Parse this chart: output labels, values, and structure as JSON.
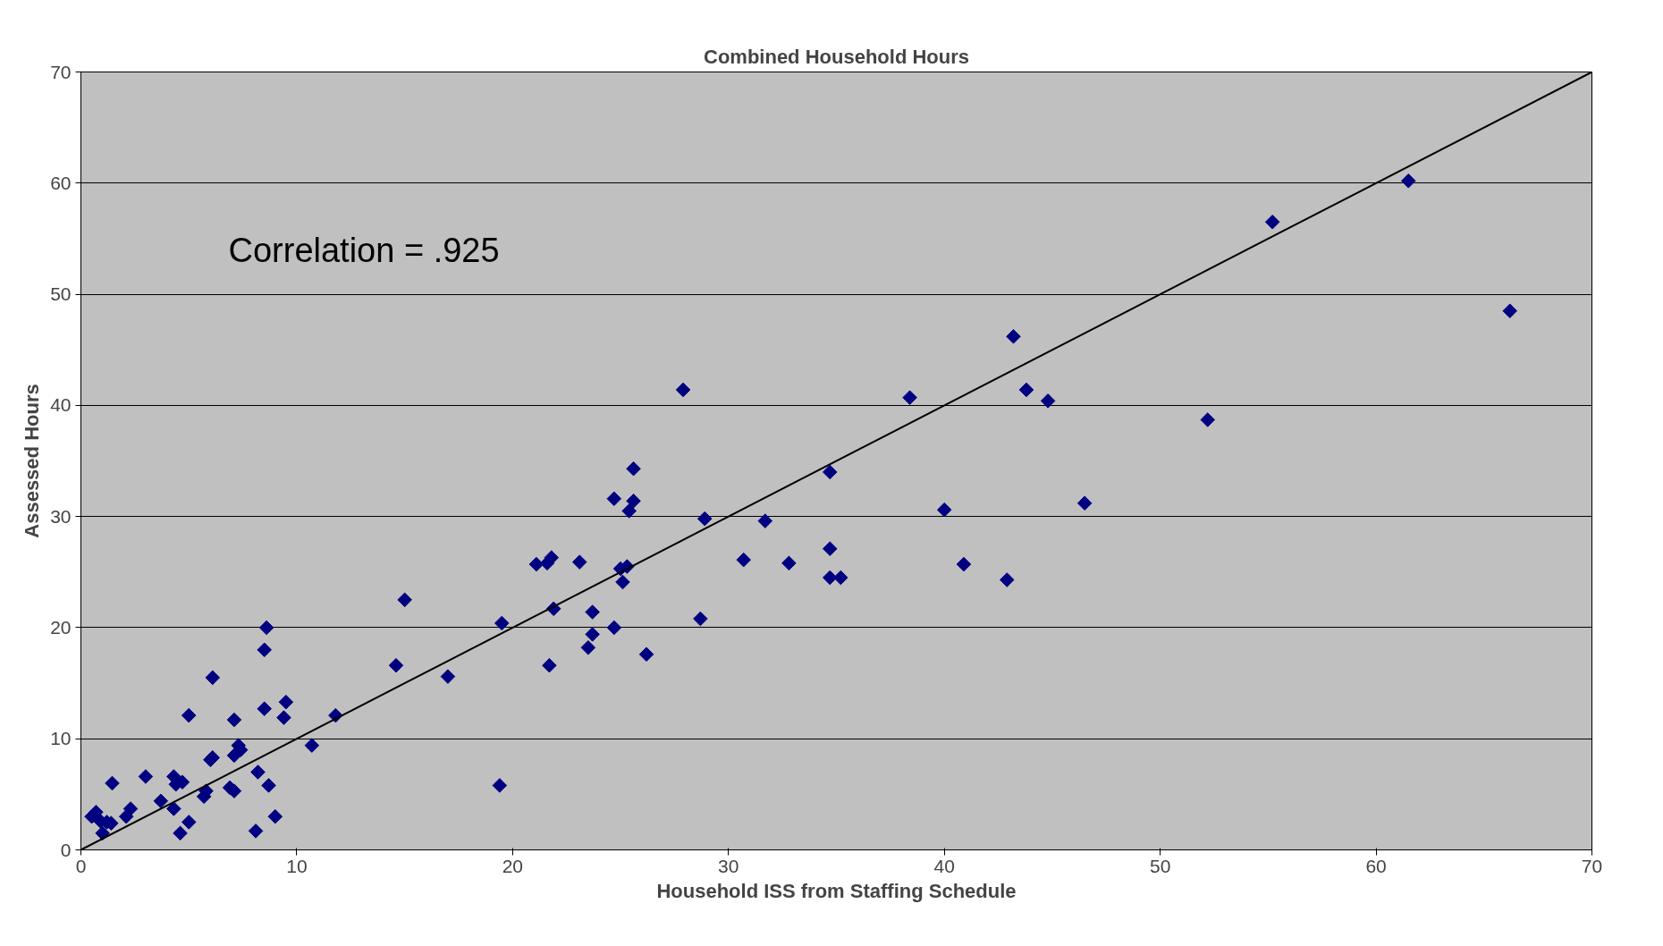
{
  "chart_data": {
    "type": "scatter",
    "title": "Combined Household Hours",
    "xlabel": "Household ISS from Staffing Schedule",
    "ylabel": "Assessed Hours",
    "annotations": [
      "Correlation = .925"
    ],
    "xlim": [
      0,
      70
    ],
    "ylim": [
      0,
      70
    ],
    "xticks": [
      0,
      10,
      20,
      30,
      40,
      50,
      60,
      70
    ],
    "yticks": [
      0,
      10,
      20,
      30,
      40,
      50,
      60,
      70
    ],
    "grid": "y",
    "marker": "diamond",
    "series": [
      {
        "color": "#000080",
        "x": [
          0.5,
          0.7,
          0.9,
          1.0,
          1.2,
          1.4,
          1.45,
          2.1,
          2.3,
          3.0,
          3.7,
          4.3,
          4.3,
          4.4,
          4.6,
          4.7,
          5.0,
          5.0,
          5.7,
          5.8,
          6.0,
          6.1,
          6.1,
          6.9,
          7.1,
          7.1,
          7.1,
          7.3,
          7.4,
          8.1,
          8.2,
          8.5,
          8.5,
          8.6,
          8.7,
          9.0,
          9.4,
          9.5,
          10.7,
          11.8,
          14.6,
          15.0,
          17.0,
          19.4,
          19.5,
          21.1,
          21.6,
          21.8,
          21.7,
          21.9,
          23.1,
          23.5,
          23.7,
          23.7,
          24.7,
          24.7,
          25.0,
          25.1,
          25.3,
          25.4,
          25.6,
          25.6,
          26.2,
          27.9,
          28.7,
          28.9,
          30.7,
          31.7,
          32.8,
          34.7,
          34.7,
          34.7,
          35.2,
          38.4,
          40.0,
          40.9,
          42.9,
          43.2,
          43.8,
          44.8,
          46.5,
          52.2,
          55.2,
          61.5,
          66.2
        ],
        "values": [
          3.0,
          3.4,
          2.6,
          1.5,
          2.5,
          2.4,
          6.0,
          3.0,
          3.7,
          6.6,
          4.4,
          6.6,
          3.7,
          5.9,
          1.5,
          6.1,
          12.1,
          2.5,
          4.8,
          5.3,
          8.1,
          15.5,
          8.3,
          5.6,
          11.7,
          5.3,
          8.5,
          9.4,
          9.0,
          1.7,
          7.0,
          18.0,
          12.7,
          20.0,
          5.8,
          3.0,
          11.9,
          13.3,
          9.4,
          12.1,
          16.6,
          22.5,
          15.6,
          5.8,
          20.4,
          25.7,
          25.8,
          26.3,
          16.6,
          21.7,
          25.9,
          18.2,
          21.4,
          19.4,
          31.6,
          20.0,
          25.3,
          24.1,
          25.5,
          30.5,
          34.3,
          31.4,
          17.6,
          41.4,
          20.8,
          29.8,
          26.1,
          29.6,
          25.8,
          34.0,
          27.1,
          24.5,
          24.5,
          40.7,
          30.6,
          25.7,
          24.3,
          46.2,
          41.4,
          40.4,
          31.2,
          38.7,
          56.5,
          60.2,
          48.5
        ]
      },
      {
        "type": "line",
        "color": "#000000",
        "x": [
          0,
          70
        ],
        "values": [
          0,
          70
        ],
        "marker": "none"
      }
    ]
  }
}
